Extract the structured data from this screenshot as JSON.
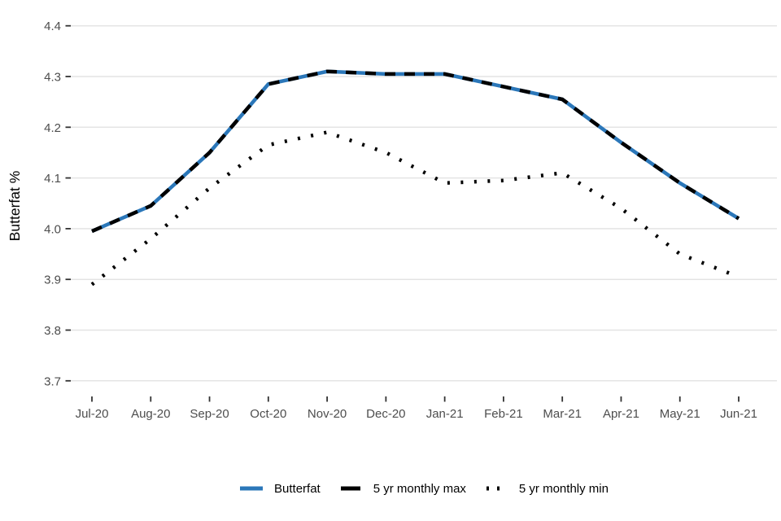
{
  "chart_data": {
    "type": "line",
    "title": "",
    "xlabel": "",
    "ylabel": "Butterfat %",
    "x": [
      "Jul-20",
      "Aug-20",
      "Sep-20",
      "Oct-20",
      "Nov-20",
      "Dec-20",
      "Jan-21",
      "Feb-21",
      "Mar-21",
      "Apr-21",
      "May-21",
      "Jun-21"
    ],
    "ylim": [
      3.7,
      4.4
    ],
    "yticks": [
      3.7,
      3.8,
      3.9,
      4.0,
      4.1,
      4.2,
      4.3,
      4.4
    ],
    "grid": "horizontal-only",
    "legend_position": "bottom-center",
    "series": [
      {
        "name": "Butterfat",
        "color": "#2B77B9",
        "style": "solid",
        "values": [
          3.995,
          4.045,
          4.15,
          4.285,
          4.31,
          4.305,
          4.305,
          4.28,
          4.255,
          4.17,
          4.09,
          4.02
        ]
      },
      {
        "name": "5 yr monthly max",
        "color": "#000000",
        "style": "dashed",
        "values": [
          3.995,
          4.045,
          4.15,
          4.285,
          4.31,
          4.305,
          4.305,
          4.28,
          4.255,
          4.17,
          4.09,
          4.02
        ]
      },
      {
        "name": "5 yr monthly min",
        "color": "#000000",
        "style": "dotted",
        "values": [
          3.89,
          3.98,
          4.08,
          4.165,
          4.19,
          4.15,
          4.09,
          4.095,
          4.11,
          4.04,
          3.95,
          3.905
        ]
      }
    ]
  },
  "colors": {
    "gridline": "#E4E4E4",
    "tick_mark": "#333333",
    "tick_label": "#4D4D4D",
    "axis_title": "#000000",
    "background": "#FFFFFF",
    "accent_blue": "#2B77B9"
  }
}
